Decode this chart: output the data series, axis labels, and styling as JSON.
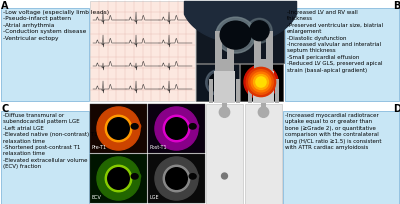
{
  "background_color": "#ffffff",
  "panel_labels": [
    "A",
    "B",
    "C",
    "D"
  ],
  "box_A_text": "-Low voltage (especially limb leads)\n-Pseudo-infarct pattern\n-Atrial arrhythmia\n-Conduction system disease\n-Ventricular ectopy",
  "box_B_text": "-Increased LV and RV wall\nthickness\n-Preserved ventricular size, biatrial\nenlargement\n-Diastolic dysfunction\n-Increased valvular and interatrial\nseptum thickness\n-Small pericardial effusion\n-Reduced LV GLS, preserved apical\nstrain (basal-apical gradient)",
  "box_C_text": "-Diffuse transmural or\nsubendocardial pattern LGE\n-Left atrial LGE\n-Elevated native (non-contrast) T1\nrelaxation time\n-Shortened post-contrast T1\nrelaxation time\n-Elevated extracellular volume\n(ECV) fraction",
  "box_D_text": "-Increased myocardial radiotracer\nuptake equal to or greater than\nbone (≥Grade 2), or quantitative\ncomparison with the contralateral\nlung (H/CL ratio ≥1.5) is consistent\nwith ATTR cardiac amyloidosis",
  "box_color": "#c8e6f5",
  "box_edge_color": "#88bbdd",
  "ecg_bg": "#fce8e0",
  "ecg_grid": "#e8b8b0",
  "mri_labels": [
    "Pre-T1",
    "Post-T1",
    "ECV",
    "LGE"
  ]
}
